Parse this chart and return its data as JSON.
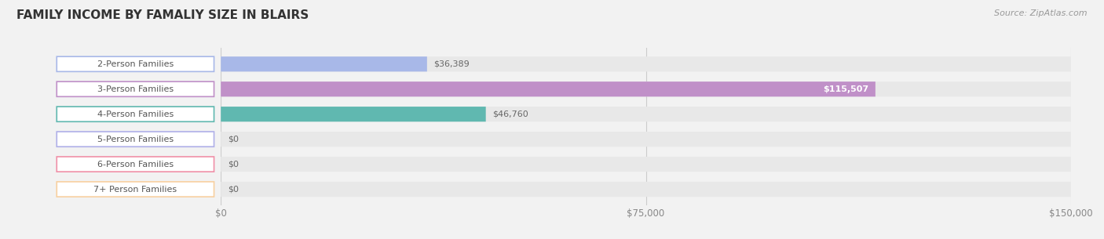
{
  "title": "FAMILY INCOME BY FAMALIY SIZE IN BLAIRS",
  "source": "Source: ZipAtlas.com",
  "categories": [
    "2-Person Families",
    "3-Person Families",
    "4-Person Families",
    "5-Person Families",
    "6-Person Families",
    "7+ Person Families"
  ],
  "values": [
    36389,
    115507,
    46760,
    0,
    0,
    0
  ],
  "bar_colors": [
    "#a8b8e8",
    "#c090c8",
    "#60b8b0",
    "#b0b0e8",
    "#f090a8",
    "#f8d0a0"
  ],
  "value_labels": [
    "$36,389",
    "$115,507",
    "$46,760",
    "$0",
    "$0",
    "$0"
  ],
  "value_label_inside": [
    false,
    true,
    false,
    false,
    false,
    false
  ],
  "xlim": [
    0,
    150000
  ],
  "xtick_labels": [
    "$0",
    "$75,000",
    "$150,000"
  ],
  "xtick_vals": [
    0,
    75000,
    150000
  ],
  "background_color": "#f2f2f2",
  "bar_bg_color": "#e8e8e8",
  "title_fontsize": 11,
  "source_fontsize": 8,
  "tick_fontsize": 8.5,
  "label_fontsize": 8,
  "value_fontsize": 8,
  "bar_height": 0.6
}
